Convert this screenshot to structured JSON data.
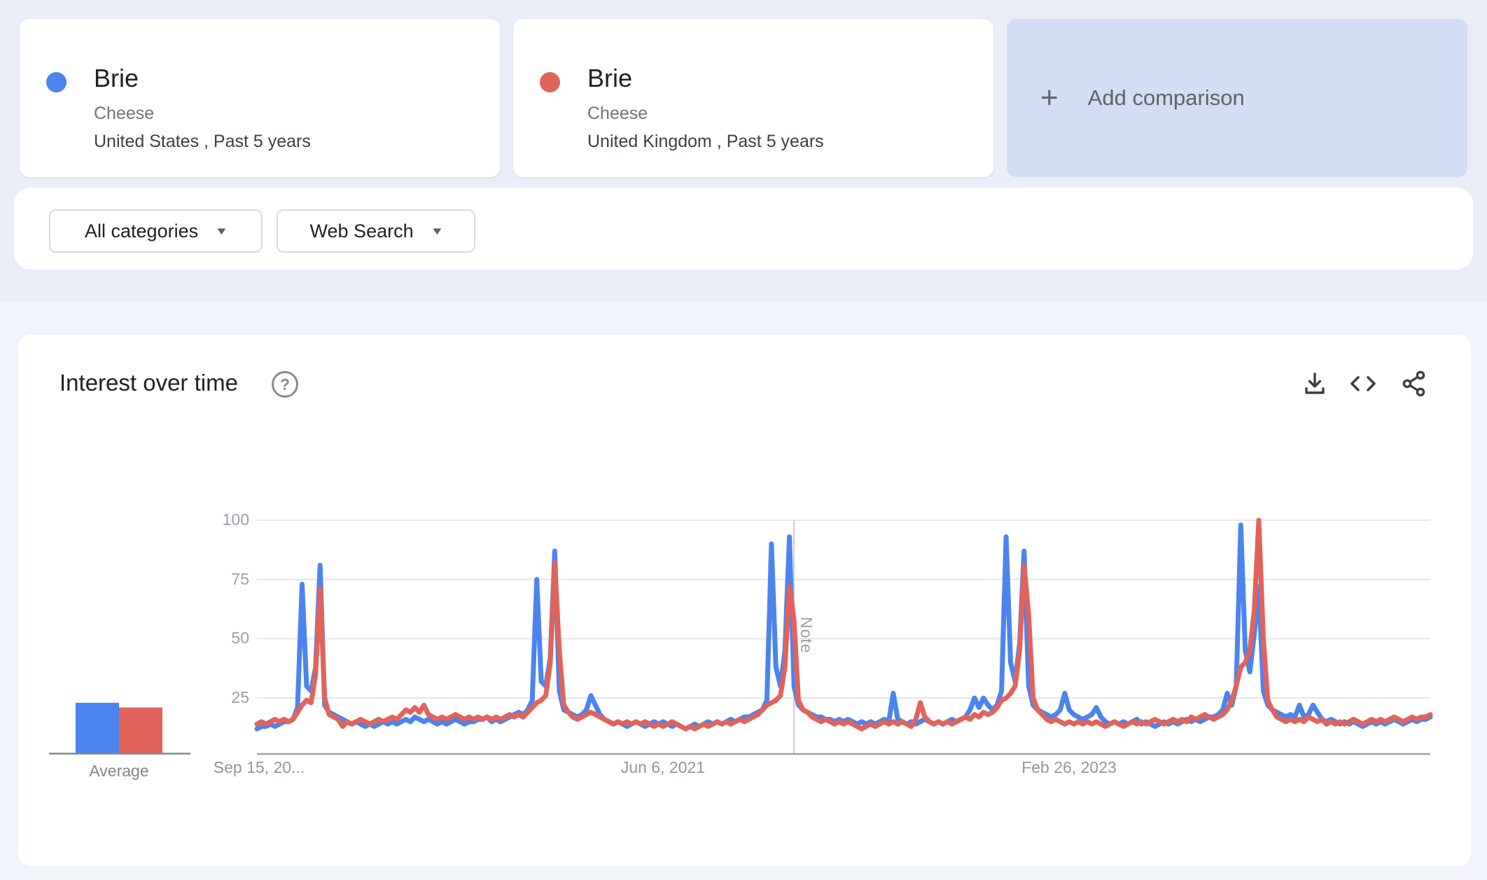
{
  "page": {
    "background_top": "#e9edf8",
    "background_bottom": "#f0f3f9",
    "card_background": "#ffffff",
    "add_card_background": "#d3ddf3"
  },
  "comparison": {
    "plus_glyph": "+",
    "add_label": "Add comparison",
    "terms": [
      {
        "label": "Brie",
        "type": "Cheese",
        "scope": "United States , Past 5 years",
        "color": "#4c84ee"
      },
      {
        "label": "Brie",
        "type": "Cheese",
        "scope": "United Kingdom , Past 5 years",
        "color": "#e2635b"
      }
    ]
  },
  "filters": {
    "caret_glyph": "▼",
    "category": "All categories",
    "search_type": "Web Search"
  },
  "chart_card": {
    "title": "Interest over time",
    "help_glyph": "?",
    "actions": [
      "download",
      "embed",
      "share"
    ]
  },
  "chart_data": {
    "type": "line",
    "title": "Interest over time",
    "grid": true,
    "legend_position": "none",
    "y_axis": {
      "range": [
        0,
        100
      ],
      "ticks": [
        100,
        75,
        50,
        25
      ]
    },
    "x_axis": {
      "unit": "week",
      "num_points": 261,
      "labels": [
        "Sep 15, 20...",
        "Jun 6, 2021",
        "Feb 26, 2023"
      ],
      "label_weeks": [
        0,
        90,
        180
      ]
    },
    "note": {
      "label": "Note",
      "week": 119
    },
    "average": {
      "label": "Average",
      "values": [
        23,
        21
      ]
    },
    "colors": {
      "grid": "#e6e6e6",
      "axis": "#9aa0a6",
      "note_line": "#c9ccd1",
      "avg_baseline": "#80868b"
    },
    "series": [
      {
        "name": "Brie (United States)",
        "color": "#4c84ee",
        "values": [
          12,
          13,
          13,
          14,
          13,
          14,
          15,
          15,
          16,
          21,
          73,
          30,
          28,
          38,
          81,
          22,
          19,
          18,
          17,
          16,
          15,
          14,
          15,
          14,
          13,
          14,
          13,
          14,
          15,
          14,
          15,
          14,
          15,
          16,
          15,
          17,
          16,
          15,
          16,
          15,
          14,
          15,
          14,
          15,
          16,
          15,
          14,
          15,
          15,
          16,
          16,
          17,
          15,
          16,
          15,
          16,
          17,
          18,
          19,
          18,
          20,
          24,
          75,
          32,
          30,
          42,
          87,
          28,
          20,
          19,
          18,
          17,
          18,
          20,
          26,
          22,
          18,
          16,
          15,
          14,
          15,
          14,
          13,
          14,
          15,
          14,
          13,
          14,
          15,
          14,
          15,
          14,
          13,
          14,
          13,
          12,
          13,
          14,
          13,
          14,
          15,
          14,
          15,
          14,
          15,
          16,
          15,
          16,
          17,
          17,
          18,
          19,
          20,
          24,
          90,
          38,
          30,
          45,
          93,
          30,
          22,
          20,
          19,
          18,
          17,
          17,
          16,
          16,
          15,
          16,
          15,
          16,
          15,
          14,
          15,
          14,
          15,
          14,
          15,
          16,
          15,
          27,
          16,
          15,
          14,
          15,
          14,
          15,
          16,
          15,
          14,
          15,
          14,
          15,
          16,
          15,
          16,
          17,
          20,
          25,
          21,
          25,
          22,
          20,
          22,
          28,
          93,
          40,
          32,
          48,
          87,
          30,
          22,
          20,
          19,
          18,
          17,
          18,
          20,
          27,
          20,
          18,
          17,
          16,
          17,
          18,
          21,
          17,
          15,
          14,
          15,
          14,
          15,
          14,
          15,
          16,
          14,
          15,
          14,
          13,
          14,
          15,
          14,
          15,
          14,
          15,
          16,
          15,
          16,
          15,
          16,
          17,
          17,
          18,
          20,
          27,
          22,
          30,
          98,
          45,
          36,
          52,
          72,
          28,
          22,
          20,
          19,
          18,
          17,
          18,
          17,
          22,
          17,
          18,
          22,
          19,
          16,
          15,
          16,
          15,
          14,
          15,
          14,
          15,
          14,
          13,
          14,
          15,
          14,
          15,
          14,
          15,
          16,
          15,
          14,
          15,
          16,
          15,
          16,
          16,
          17
        ]
      },
      {
        "name": "Brie (United Kingdom)",
        "color": "#e2635b",
        "values": [
          14,
          15,
          14,
          15,
          16,
          15,
          16,
          15,
          16,
          19,
          22,
          24,
          23,
          35,
          71,
          25,
          18,
          17,
          16,
          13,
          15,
          14,
          15,
          16,
          15,
          14,
          15,
          16,
          15,
          16,
          17,
          16,
          18,
          20,
          19,
          21,
          19,
          22,
          18,
          17,
          16,
          17,
          16,
          17,
          18,
          17,
          16,
          17,
          16,
          17,
          16,
          17,
          16,
          17,
          16,
          17,
          18,
          17,
          18,
          17,
          19,
          21,
          23,
          24,
          26,
          40,
          82,
          45,
          22,
          19,
          17,
          16,
          17,
          18,
          19,
          18,
          17,
          16,
          15,
          14,
          15,
          14,
          15,
          14,
          15,
          14,
          15,
          14,
          13,
          14,
          13,
          14,
          15,
          14,
          13,
          12,
          13,
          12,
          13,
          14,
          13,
          14,
          15,
          14,
          15,
          14,
          15,
          16,
          15,
          16,
          17,
          18,
          20,
          22,
          23,
          24,
          26,
          38,
          72,
          58,
          24,
          20,
          19,
          17,
          16,
          15,
          16,
          15,
          14,
          15,
          14,
          15,
          14,
          13,
          12,
          13,
          14,
          13,
          14,
          15,
          14,
          15,
          14,
          15,
          14,
          13,
          16,
          23,
          17,
          15,
          14,
          15,
          14,
          15,
          14,
          15,
          16,
          17,
          16,
          18,
          17,
          19,
          18,
          19,
          21,
          24,
          25,
          27,
          30,
          45,
          81,
          60,
          25,
          20,
          18,
          16,
          15,
          16,
          15,
          14,
          15,
          14,
          15,
          14,
          15,
          14,
          15,
          14,
          13,
          14,
          15,
          14,
          13,
          14,
          15,
          14,
          15,
          14,
          15,
          16,
          15,
          14,
          15,
          16,
          15,
          16,
          15,
          17,
          16,
          17,
          18,
          17,
          16,
          17,
          18,
          20,
          24,
          30,
          38,
          40,
          45,
          62,
          100,
          50,
          24,
          20,
          17,
          16,
          15,
          16,
          15,
          16,
          15,
          17,
          16,
          15,
          16,
          14,
          15,
          14,
          15,
          14,
          15,
          16,
          15,
          14,
          15,
          16,
          15,
          16,
          15,
          16,
          17,
          16,
          15,
          16,
          17,
          16,
          17,
          17,
          18
        ]
      }
    ]
  }
}
